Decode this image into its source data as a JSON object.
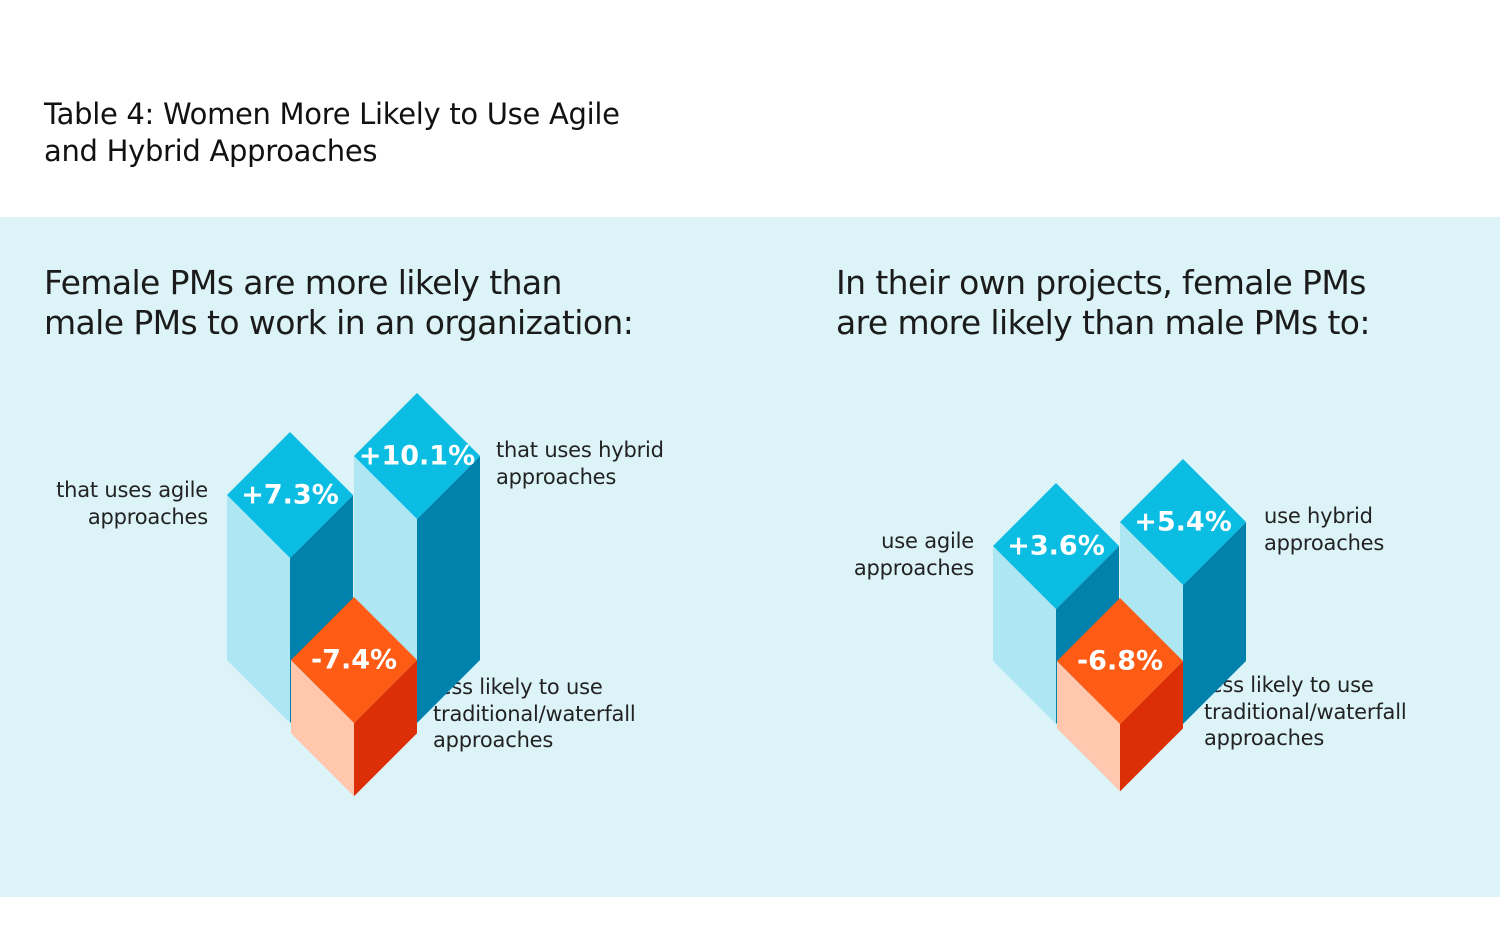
{
  "title": {
    "line1": "Table 4: Women More Likely to Use Agile",
    "line2": "and Hybrid Approaches"
  },
  "left_headline": {
    "line1": "Female PMs are more likely than",
    "line2": "male PMs to work in an organization:"
  },
  "right_headline": {
    "line1": "In their own projects, female PMs",
    "line2": "are more likely than male PMs to:"
  },
  "colors": {
    "panel": "#dcf3f8",
    "blue_top": "#0bbde2",
    "blue_left": "#aee6f4",
    "blue_right": "#0082ad",
    "orange_top": "#fe5c14",
    "orange_left": "#fec7ae",
    "orange_right": "#dc2f07"
  },
  "chart_data": [
    {
      "type": "bar",
      "title": "Female PMs are more likely than male PMs to work in an organization:",
      "categories": [
        "agile",
        "hybrid",
        "traditional/waterfall"
      ],
      "values": [
        7.3,
        10.1,
        -7.4
      ],
      "value_labels": [
        "+7.3%",
        "+10.1%",
        "-7.4%"
      ],
      "annotations": [
        {
          "line1": "that uses agile",
          "line2": "approaches"
        },
        {
          "line1": "that uses hybrid",
          "line2": "approaches"
        },
        {
          "line1": "less likely to use",
          "line2": "traditional/waterfall",
          "line3": "approaches"
        }
      ]
    },
    {
      "type": "bar",
      "title": "In their own projects, female PMs are more likely than male PMs to:",
      "categories": [
        "agile",
        "hybrid",
        "traditional/waterfall"
      ],
      "values": [
        3.6,
        5.4,
        -6.8
      ],
      "value_labels": [
        "+3.6%",
        "+5.4%",
        "-6.8%"
      ],
      "annotations": [
        {
          "line1": "use agile",
          "line2": "approaches"
        },
        {
          "line1": "use hybrid",
          "line2": "approaches"
        },
        {
          "line1": "less likely to use",
          "line2": "traditional/waterfall",
          "line3": "approaches"
        }
      ]
    }
  ]
}
